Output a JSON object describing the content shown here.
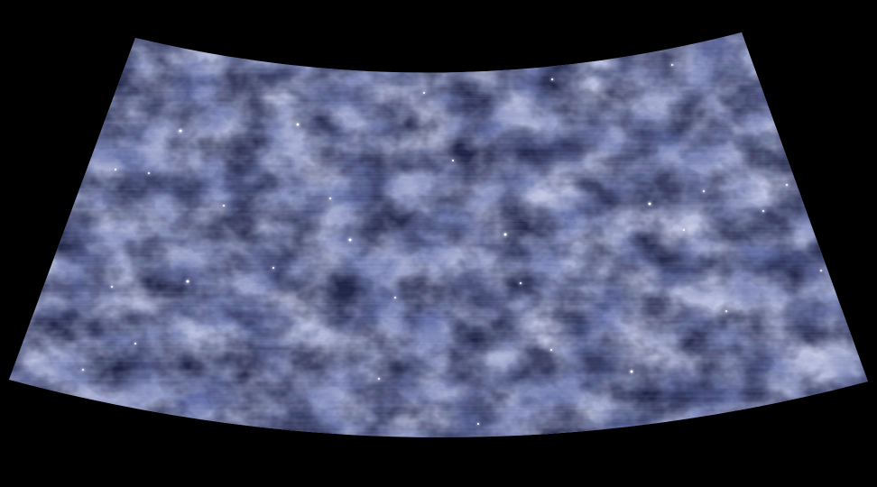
{
  "image": {
    "subject": "sky-map",
    "colors": {
      "background": "#000000",
      "base": "#6470a8",
      "dark": "#1f2446",
      "mid": "#4a5590",
      "light": "#c8cde6",
      "highlight": "#e4e7f4",
      "star": "#ffffff"
    }
  }
}
